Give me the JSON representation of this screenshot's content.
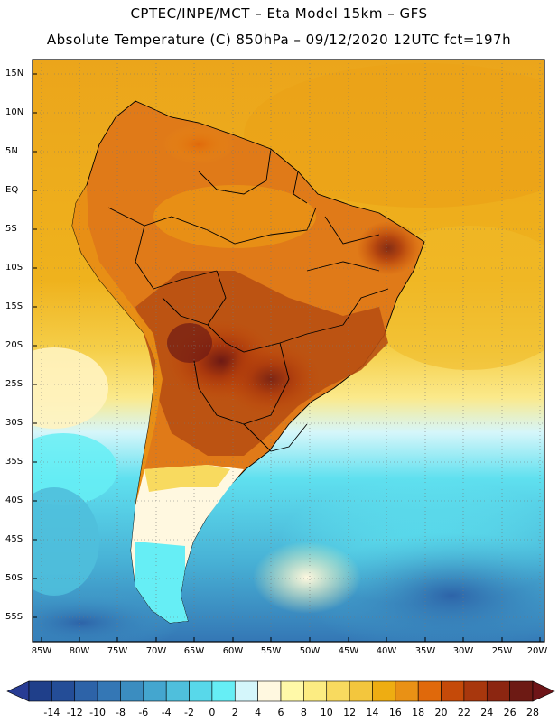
{
  "header": {
    "line1": "CPTEC/INPE/MCT –  Eta Model 15km – GFS",
    "line2": "Absolute Temperature (C) 850hPa – 09/12/2020 12UTC fct=197h"
  },
  "map": {
    "region": "South America",
    "lat_labels": [
      "15N",
      "10N",
      "5N",
      "EQ",
      "5S",
      "10S",
      "15S",
      "20S",
      "25S",
      "30S",
      "35S",
      "40S",
      "45S",
      "50S",
      "55S"
    ],
    "lon_labels": [
      "85W",
      "80W",
      "75W",
      "70W",
      "65W",
      "60W",
      "55W",
      "50W",
      "45W",
      "40W",
      "35W",
      "30W",
      "25W",
      "20W"
    ]
  },
  "colorbar": {
    "labels": [
      "-14",
      "-12",
      "-10",
      "-8",
      "-6",
      "-4",
      "-2",
      "0",
      "2",
      "4",
      "6",
      "8",
      "10",
      "12",
      "14",
      "16",
      "18",
      "20",
      "22",
      "24",
      "26",
      "28"
    ],
    "colors": [
      "#1f3f8a",
      "#244d97",
      "#2d63a8",
      "#3477b5",
      "#3b8dc0",
      "#44a6cf",
      "#4fbfdc",
      "#58d8ea",
      "#66eef5",
      "#d4f6fb",
      "#fff8e0",
      "#fff9a8",
      "#fcec82",
      "#f8da5f",
      "#f3c63d",
      "#eead12",
      "#e99115",
      "#e0690b",
      "#c54a09",
      "#a8370d",
      "#8c2611",
      "#6d1a14"
    ],
    "under_color": "#283c94",
    "over_color": "#6e1518"
  },
  "colors": {
    "ocean_warm": "#eaa61a",
    "land_hot": "#c45a16",
    "coast": "#000000"
  }
}
